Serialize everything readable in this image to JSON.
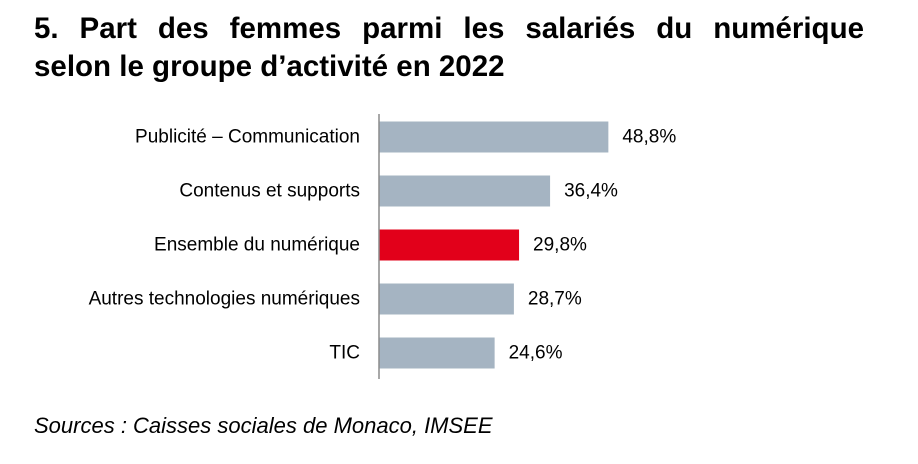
{
  "title_line1": "5. Part des femmes parmi les salariés du numérique",
  "title_line2": "selon le groupe d’activité en 2022",
  "source": "Sources : Caisses sociales de Monaco, IMSEE",
  "colors": {
    "default_bar": "#a5b4c2",
    "highlight_bar": "#e2001a",
    "axis": "#8c8c8c"
  },
  "chart_data": {
    "type": "bar",
    "orientation": "horizontal",
    "title": "5. Part des femmes parmi les salariés du numérique selon le groupe d’activité en 2022",
    "categories": [
      "Publicité – Communication",
      "Contenus et supports",
      "Ensemble du numérique",
      "Autres technologies numériques",
      "TIC"
    ],
    "values": [
      48.8,
      36.4,
      29.8,
      28.7,
      24.6
    ],
    "value_labels": [
      "48,8%",
      "36,4%",
      "29,8%",
      "28,7%",
      "24,6%"
    ],
    "highlight_index": 2,
    "unit": "%",
    "xlabel": "",
    "ylabel": "",
    "xlim": [
      0,
      50
    ],
    "grid": false
  }
}
